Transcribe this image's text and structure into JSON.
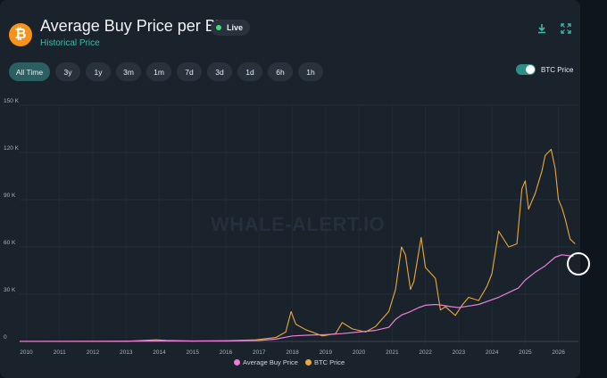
{
  "header": {
    "title": "Average Buy Price per BTC",
    "subtitle": "Historical Price",
    "live_label": "Live",
    "coin_symbol": "₿"
  },
  "toolbar": {
    "download_icon": "download-icon",
    "fullscreen_icon": "fullscreen-icon"
  },
  "ranges": [
    {
      "label": "All Time",
      "active": true
    },
    {
      "label": "3y",
      "active": false
    },
    {
      "label": "1y",
      "active": false
    },
    {
      "label": "3m",
      "active": false
    },
    {
      "label": "1m",
      "active": false
    },
    {
      "label": "7d",
      "active": false
    },
    {
      "label": "3d",
      "active": false
    },
    {
      "label": "1d",
      "active": false
    },
    {
      "label": "6h",
      "active": false
    },
    {
      "label": "1h",
      "active": false
    }
  ],
  "toggle": {
    "label": "BTC Price",
    "on": true
  },
  "watermark": "WHALE-ALERT.IO",
  "colors": {
    "avg_buy": "#e87fd6",
    "btc_price": "#e8a93c",
    "accent": "#2c8f85"
  },
  "chart_data": {
    "type": "line",
    "ylim": [
      0,
      150000
    ],
    "y_ticks": [
      0,
      30000,
      60000,
      90000,
      120000,
      150000
    ],
    "y_tick_labels": [
      "0",
      "30 K",
      "60 K",
      "90 K",
      "120 K",
      "150 K"
    ],
    "xlim": [
      2009.8,
      2026.6
    ],
    "x_ticks": [
      2010,
      2011,
      2012,
      2013,
      2014,
      2015,
      2016,
      2017,
      2018,
      2019,
      2020,
      2021,
      2022,
      2023,
      2024,
      2025,
      2026
    ],
    "grid": true,
    "legend_position": "bottom-center",
    "series": [
      {
        "name": "Average Buy Price",
        "x": [
          2009.8,
          2012,
          2014,
          2016,
          2017,
          2017.5,
          2018,
          2018.5,
          2019,
          2019.5,
          2020,
          2020.5,
          2020.9,
          2021.1,
          2021.3,
          2021.5,
          2021.8,
          2022,
          2022.3,
          2022.5,
          2022.8,
          2023,
          2023.3,
          2023.6,
          2024,
          2024.2,
          2024.5,
          2024.8,
          2025,
          2025.3,
          2025.6,
          2025.9,
          2026.1,
          2026.3,
          2026.45
        ],
        "values": [
          50,
          50,
          300,
          300,
          600,
          1500,
          3500,
          4000,
          4300,
          5000,
          6000,
          7000,
          9000,
          14000,
          17000,
          18500,
          21500,
          23000,
          23500,
          23000,
          22000,
          21500,
          22500,
          23500,
          26500,
          28000,
          31000,
          34000,
          39000,
          44000,
          48000,
          53500,
          55000,
          54500,
          54000
        ]
      },
      {
        "name": "BTC Price",
        "x": [
          2009.8,
          2013,
          2013.9,
          2014.2,
          2015,
          2016,
          2016.9,
          2017.5,
          2017.8,
          2017.96,
          2018.1,
          2018.4,
          2018.9,
          2019.3,
          2019.5,
          2019.8,
          2020.2,
          2020.5,
          2020.9,
          2021.1,
          2021.28,
          2021.4,
          2021.55,
          2021.65,
          2021.87,
          2022,
          2022.3,
          2022.45,
          2022.6,
          2022.9,
          2023.1,
          2023.3,
          2023.6,
          2023.85,
          2024,
          2024.2,
          2024.5,
          2024.75,
          2024.9,
          2025,
          2025.1,
          2025.3,
          2025.5,
          2025.6,
          2025.78,
          2025.9,
          2026,
          2026.1,
          2026.2,
          2026.35,
          2026.5
        ],
        "values": [
          0,
          100,
          1000,
          700,
          250,
          450,
          1000,
          2500,
          6000,
          19000,
          11000,
          7500,
          3500,
          5000,
          12000,
          8000,
          6000,
          9500,
          19000,
          33000,
          60000,
          55000,
          33000,
          38000,
          66000,
          47000,
          40000,
          20000,
          22000,
          16500,
          23000,
          28000,
          26000,
          35000,
          43000,
          70000,
          60000,
          62000,
          97000,
          102000,
          84000,
          94000,
          108000,
          118000,
          122000,
          110000,
          90000,
          85000,
          78000,
          65000,
          62000
        ]
      }
    ]
  }
}
